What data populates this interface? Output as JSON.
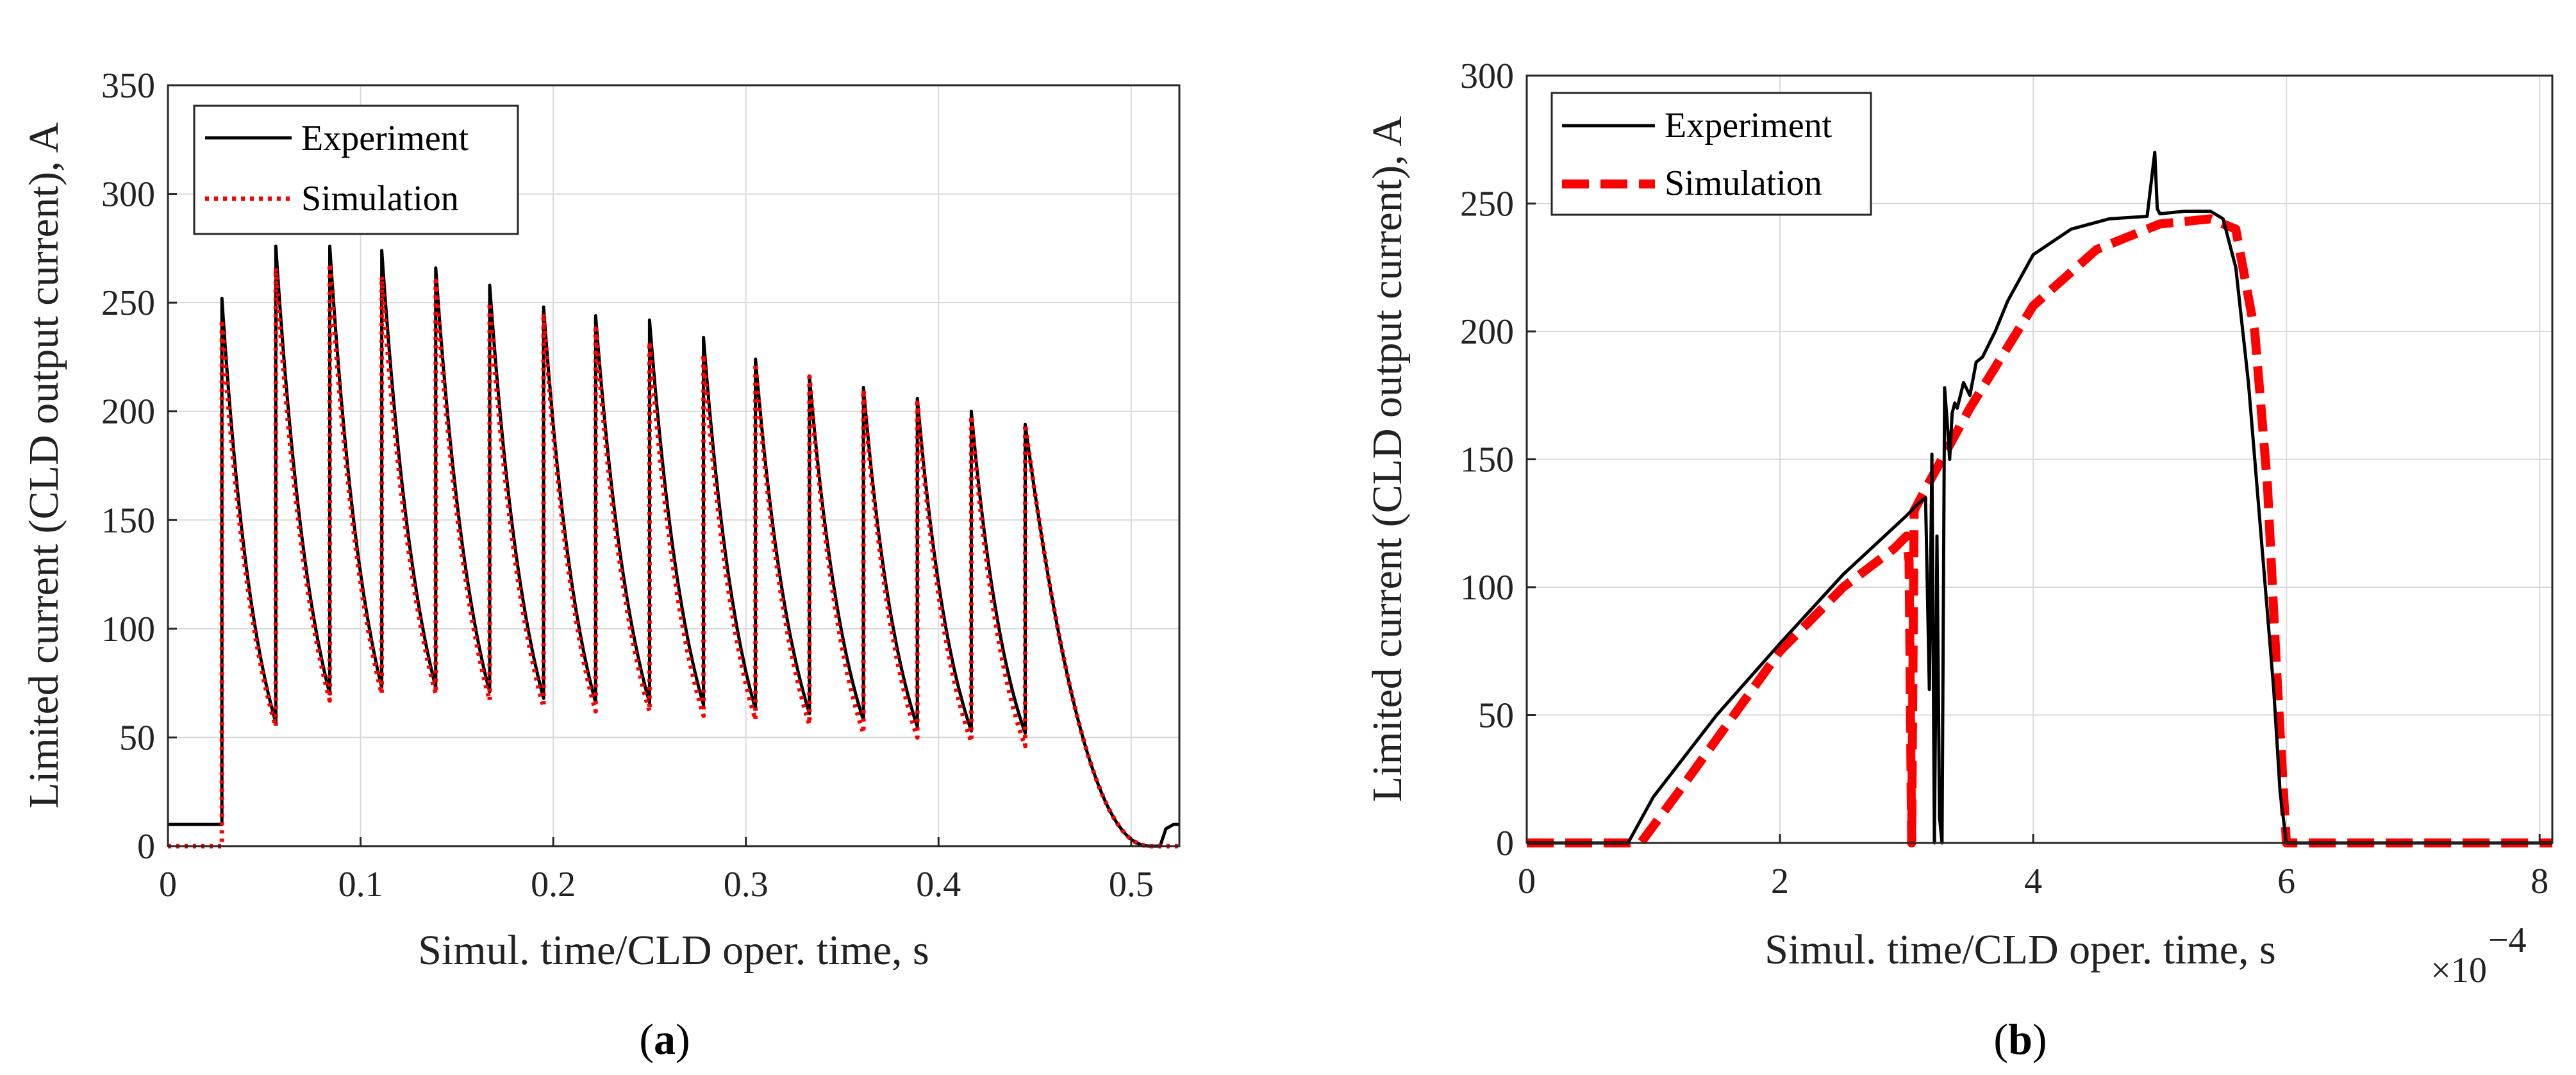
{
  "chart_data": [
    {
      "id": "a",
      "type": "line",
      "caption_paren_open": "(",
      "caption_letter": "a",
      "caption_paren_close": ")",
      "title": "",
      "xlabel": "Simul. time/CLD oper. time, s",
      "ylabel": "Limited current (CLD output current), A",
      "xlim": [
        0,
        0.525
      ],
      "ylim": [
        0,
        350
      ],
      "xticks": [
        0,
        0.1,
        0.2,
        0.3,
        0.4,
        0.5
      ],
      "xtick_labels": [
        "0",
        "0.1",
        "0.2",
        "0.3",
        "0.4",
        "0.5"
      ],
      "yticks": [
        0,
        50,
        100,
        150,
        200,
        250,
        300,
        350
      ],
      "ytick_labels": [
        "0",
        "50",
        "100",
        "150",
        "200",
        "250",
        "300",
        "350"
      ],
      "grid": true,
      "legend_position": "top-left",
      "series": [
        {
          "name": "Experiment",
          "color": "#000000",
          "style": "solid",
          "pulses": [
            {
              "t": 0.028,
              "peak": 252,
              "low": 57
            },
            {
              "t": 0.056,
              "peak": 276,
              "low": 70
            },
            {
              "t": 0.084,
              "peak": 276,
              "low": 73
            },
            {
              "t": 0.111,
              "peak": 274,
              "low": 73
            },
            {
              "t": 0.139,
              "peak": 266,
              "low": 71
            },
            {
              "t": 0.167,
              "peak": 258,
              "low": 68
            },
            {
              "t": 0.195,
              "peak": 248,
              "low": 66
            },
            {
              "t": 0.222,
              "peak": 244,
              "low": 66
            },
            {
              "t": 0.25,
              "peak": 242,
              "low": 65
            },
            {
              "t": 0.278,
              "peak": 234,
              "low": 63
            },
            {
              "t": 0.305,
              "peak": 224,
              "low": 61
            },
            {
              "t": 0.333,
              "peak": 216,
              "low": 58
            },
            {
              "t": 0.361,
              "peak": 211,
              "low": 55
            },
            {
              "t": 0.389,
              "peak": 206,
              "low": 53
            },
            {
              "t": 0.417,
              "peak": 200,
              "low": 52
            },
            {
              "t": 0.445,
              "peak": 194,
              "low": 0
            }
          ],
          "pre_level": 10,
          "end_t": 0.525
        },
        {
          "name": "Simulation",
          "color": "#ff0000",
          "style": "dotted",
          "pulses": [
            {
              "t": 0.028,
              "peak": 242,
              "low": 55
            },
            {
              "t": 0.056,
              "peak": 266,
              "low": 67
            },
            {
              "t": 0.084,
              "peak": 268,
              "low": 70
            },
            {
              "t": 0.111,
              "peak": 262,
              "low": 70
            },
            {
              "t": 0.139,
              "peak": 260,
              "low": 67
            },
            {
              "t": 0.167,
              "peak": 250,
              "low": 64
            },
            {
              "t": 0.195,
              "peak": 245,
              "low": 62
            },
            {
              "t": 0.222,
              "peak": 238,
              "low": 62
            },
            {
              "t": 0.25,
              "peak": 232,
              "low": 60
            },
            {
              "t": 0.278,
              "peak": 226,
              "low": 58
            },
            {
              "t": 0.305,
              "peak": 222,
              "low": 56
            },
            {
              "t": 0.333,
              "peak": 216,
              "low": 52
            },
            {
              "t": 0.361,
              "peak": 210,
              "low": 50
            },
            {
              "t": 0.389,
              "peak": 204,
              "low": 48
            },
            {
              "t": 0.417,
              "peak": 198,
              "low": 46
            },
            {
              "t": 0.445,
              "peak": 194,
              "low": 0
            }
          ],
          "pre_level": 0,
          "end_t": 0.525
        }
      ]
    },
    {
      "id": "b",
      "type": "line",
      "caption_paren_open": "(",
      "caption_letter": "b",
      "caption_paren_close": ")",
      "title": "",
      "xlabel": "Simul. time/CLD oper. time, s",
      "ylabel": "Limited current (CLD output current), A",
      "exponent_prefix": "×10",
      "exponent_power": "−4",
      "xlim": [
        0,
        8.1
      ],
      "ylim": [
        0,
        300
      ],
      "xticks": [
        0,
        2,
        4,
        6,
        8
      ],
      "xtick_labels": [
        "0",
        "2",
        "4",
        "6",
        "8"
      ],
      "yticks": [
        0,
        50,
        100,
        150,
        200,
        250,
        300
      ],
      "ytick_labels": [
        "0",
        "50",
        "100",
        "150",
        "200",
        "250",
        "300"
      ],
      "grid": true,
      "legend_position": "top-left",
      "series": [
        {
          "name": "Experiment",
          "color": "#000000",
          "style": "solid",
          "x": [
            0,
            0.8,
            1.0,
            1.5,
            2.0,
            2.5,
            3.0,
            3.1,
            3.15,
            3.18,
            3.2,
            3.22,
            3.24,
            3.26,
            3.28,
            3.3,
            3.32,
            3.34,
            3.36,
            3.38,
            3.4,
            3.45,
            3.5,
            3.55,
            3.6,
            3.7,
            3.8,
            4.0,
            4.3,
            4.6,
            4.9,
            4.96,
            4.98,
            5.0,
            5.2,
            5.4,
            5.5,
            5.6,
            5.7,
            5.8,
            5.9,
            5.95,
            6.0,
            8.1
          ],
          "y": [
            0,
            0,
            18,
            50,
            78,
            105,
            128,
            133,
            135,
            60,
            152,
            0,
            120,
            10,
            0,
            178,
            165,
            150,
            168,
            172,
            170,
            180,
            175,
            188,
            190,
            200,
            212,
            230,
            240,
            244,
            245,
            270,
            248,
            246,
            247,
            247,
            244,
            225,
            180,
            120,
            60,
            20,
            0,
            0
          ]
        },
        {
          "name": "Simulation",
          "color": "#ff0000",
          "style": "dashed",
          "x": [
            0,
            0.9,
            1.2,
            2.0,
            2.5,
            2.9,
            3.0,
            3.02,
            3.04,
            3.06,
            3.2,
            3.5,
            4.0,
            4.5,
            5.0,
            5.4,
            5.6,
            5.75,
            5.85,
            5.92,
            6.0,
            8.1
          ],
          "y": [
            0,
            0,
            20,
            75,
            100,
            115,
            120,
            110,
            0,
            130,
            143,
            170,
            210,
            232,
            242,
            244,
            240,
            200,
            140,
            70,
            0,
            0
          ]
        }
      ]
    }
  ]
}
